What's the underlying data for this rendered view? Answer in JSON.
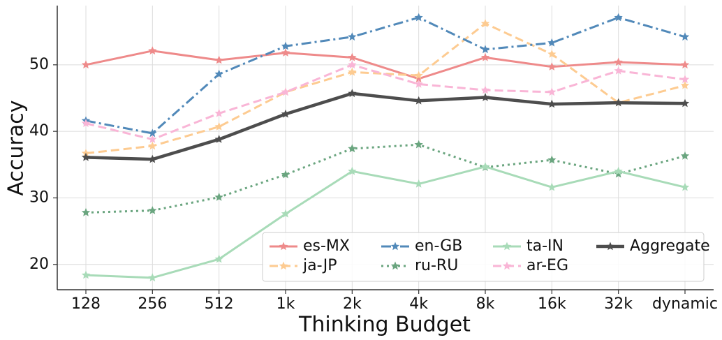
{
  "chart_data": {
    "type": "line",
    "xlabel": "Thinking Budget",
    "ylabel": "Accuracy",
    "categories": [
      "128",
      "256",
      "512",
      "1k",
      "2k",
      "4k",
      "8k",
      "16k",
      "32k",
      "dynamic"
    ],
    "series": [
      {
        "name": "es-MX",
        "color": "#ee8a8a",
        "dash": "solid",
        "values": [
          50.0,
          52.1,
          50.7,
          51.8,
          51.1,
          47.9,
          51.1,
          49.7,
          50.4,
          50.0
        ]
      },
      {
        "name": "ja-JP",
        "color": "#fdcb91",
        "dash": "dashed",
        "values": [
          36.7,
          37.8,
          40.7,
          45.9,
          48.9,
          48.4,
          56.2,
          51.6,
          44.3,
          46.9
        ]
      },
      {
        "name": "en-GB",
        "color": "#5189b9",
        "dash": "dashdot",
        "values": [
          41.6,
          39.7,
          48.6,
          52.8,
          54.2,
          57.1,
          52.3,
          53.3,
          57.1,
          54.2
        ]
      },
      {
        "name": "ru-RU",
        "color": "#6aa57f",
        "dash": "dotted",
        "values": [
          27.8,
          28.1,
          30.1,
          33.5,
          37.4,
          38.0,
          34.6,
          35.7,
          33.6,
          36.3
        ]
      },
      {
        "name": "ta-IN",
        "color": "#a8dbb8",
        "dash": "solid",
        "values": [
          18.4,
          18.0,
          20.8,
          27.6,
          34.0,
          32.1,
          34.7,
          31.6,
          34.0,
          31.6
        ]
      },
      {
        "name": "ar-EG",
        "color": "#f9b5d6",
        "dash": "dashed",
        "values": [
          41.2,
          38.8,
          42.7,
          45.9,
          50.0,
          47.1,
          46.2,
          45.9,
          49.1,
          47.8
        ]
      },
      {
        "name": "Aggregate",
        "color": "#4d4d4d",
        "dash": "solid",
        "bold": true,
        "values": [
          36.1,
          35.8,
          38.8,
          42.6,
          45.7,
          44.6,
          45.1,
          44.1,
          44.3,
          44.2
        ]
      }
    ],
    "ylim": [
      16.2,
      58.9
    ],
    "yticks": [
      20,
      30,
      40,
      50
    ],
    "grid": true,
    "legend": "lower right",
    "legend_columns": 4
  }
}
